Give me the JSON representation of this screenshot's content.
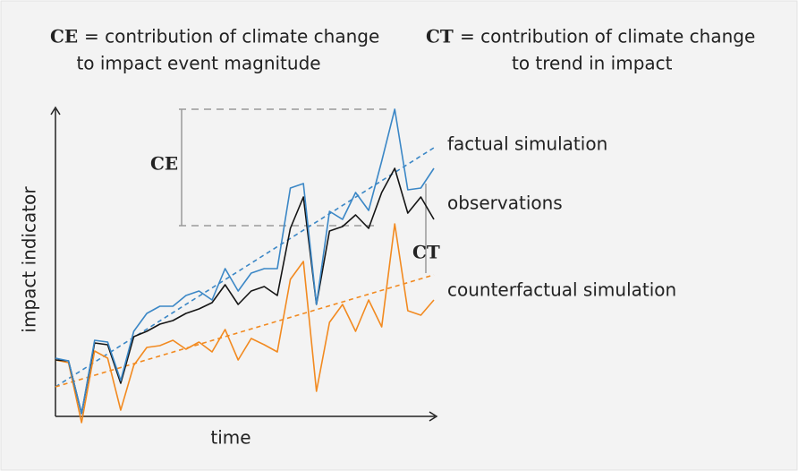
{
  "header": {
    "ce_symbol": "CE",
    "ce_line1": "= contribution of climate change",
    "ce_line2": "to impact event magnitude",
    "ct_symbol": "CT",
    "ct_line1": "= contribution of climate change",
    "ct_line2": "to trend in impact"
  },
  "chart_data": {
    "type": "line",
    "x_label": "time",
    "y_label": "impact indicator",
    "xlim": [
      0,
      29
    ],
    "ylim": [
      0,
      345
    ],
    "series": [
      {
        "name": "factual simulation",
        "color": "#3b87c6",
        "values": [
          65,
          62,
          3,
          85,
          83,
          40,
          95,
          115,
          123,
          123,
          135,
          140,
          130,
          165,
          140,
          160,
          165,
          165,
          255,
          260,
          125,
          229,
          220,
          250,
          230,
          285,
          343,
          253,
          255,
          277
        ]
      },
      {
        "name": "observations",
        "color": "#151515",
        "values": [
          63,
          62,
          3,
          82,
          80,
          37,
          89,
          95,
          103,
          107,
          115,
          120,
          127,
          147,
          125,
          140,
          145,
          135,
          210,
          245,
          125,
          207,
          212,
          225,
          210,
          250,
          277,
          227,
          245,
          220
        ]
      },
      {
        "name": "counterfactual simulation",
        "color": "#f28a20",
        "values": [
          63,
          60,
          -7,
          73,
          65,
          7,
          57,
          77,
          79,
          85,
          75,
          83,
          72,
          97,
          63,
          87,
          80,
          72,
          153,
          173,
          28,
          105,
          125,
          95,
          130,
          100,
          215,
          118,
          113,
          130
        ]
      }
    ],
    "trend_lines": [
      {
        "color": "#3b87c6",
        "x": [
          0,
          29
        ],
        "values": [
          33,
          300
        ]
      },
      {
        "color": "#f28a20",
        "x": [
          0,
          29
        ],
        "values": [
          33,
          158
        ]
      }
    ],
    "annotations": {
      "ce": {
        "label": "CE",
        "range": [
          213,
          343
        ]
      },
      "ct": {
        "label": "CT",
        "range": [
          160,
          260
        ]
      }
    }
  }
}
